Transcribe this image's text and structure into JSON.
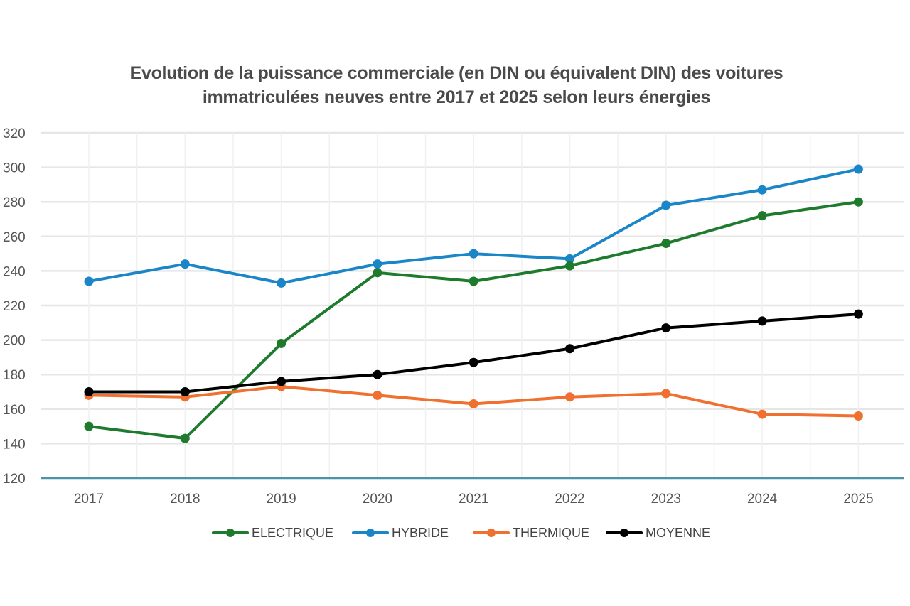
{
  "chart_data": {
    "type": "line",
    "title": "Evolution de la puissance commerciale (en DIN ou équivalent DIN) des voitures immatriculées neuves entre 2017 et 2025 selon leurs énergies",
    "title_lines": [
      "Evolution de la puissance commerciale (en DIN ou équivalent DIN) des voitures",
      "immatriculées neuves entre 2017 et 2025 selon leurs énergies"
    ],
    "xlabel": "",
    "ylabel": "",
    "categories": [
      "2017",
      "2018",
      "2019",
      "2020",
      "2021",
      "2022",
      "2023",
      "2024",
      "2025"
    ],
    "ylim": [
      120,
      320
    ],
    "yticks": [
      120,
      140,
      160,
      180,
      200,
      220,
      240,
      260,
      280,
      300,
      320
    ],
    "grid": true,
    "legend_position": "bottom",
    "series": [
      {
        "name": "ELECTRIQUE",
        "color": "#1e7b2e",
        "values": [
          150,
          143,
          198,
          239,
          234,
          243,
          256,
          272,
          280
        ]
      },
      {
        "name": "HYBRIDE",
        "color": "#1a86c8",
        "values": [
          234,
          244,
          233,
          244,
          250,
          247,
          278,
          287,
          299
        ]
      },
      {
        "name": "THERMIQUE",
        "color": "#f07030",
        "values": [
          168,
          167,
          173,
          168,
          163,
          167,
          169,
          157,
          156
        ]
      },
      {
        "name": "MOYENNE",
        "color": "#000000",
        "values": [
          170,
          170,
          176,
          180,
          187,
          195,
          207,
          211,
          215
        ]
      }
    ],
    "axis_color": "#4a93a8",
    "grid_color": "#e6e6e6"
  }
}
